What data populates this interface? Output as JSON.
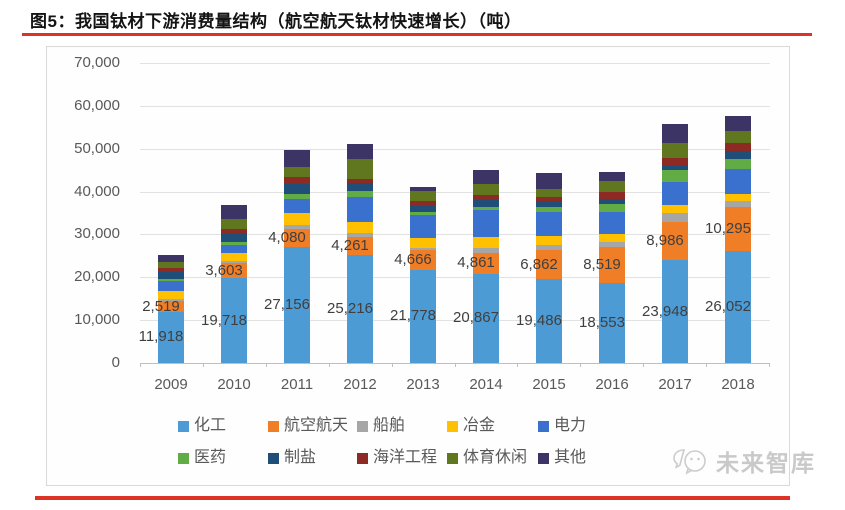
{
  "page": {
    "title": "图5：我国钛材下游消费量结构（航空航天钛材快速增长）（吨）"
  },
  "watermark": {
    "text": "未来智库",
    "icon": "chat-bubbles-icon"
  },
  "colors": {
    "accent_red": "#dd3226",
    "grid": "#e2e2e2",
    "axis": "#bfbfbf",
    "data_label": "#3f3f3f",
    "tick_label": "#595959"
  },
  "chart_data": {
    "type": "bar",
    "stacked": true,
    "title": "我国钛材下游消费量结构（吨）",
    "unit": "吨",
    "categories": [
      "2009",
      "2010",
      "2011",
      "2012",
      "2013",
      "2014",
      "2015",
      "2016",
      "2017",
      "2018"
    ],
    "ylim": [
      0,
      70000
    ],
    "ytick_step": 10000,
    "grid": true,
    "legend_position": "bottom",
    "series": [
      {
        "key": "chemical",
        "name": "化工",
        "color": "#4d9bd5",
        "labeled": true,
        "values": [
          11918,
          19718,
          27156,
          25216,
          21778,
          20867,
          19486,
          18553,
          23948,
          26052
        ]
      },
      {
        "key": "aerospace",
        "name": "航空航天",
        "color": "#f07e26",
        "labeled": true,
        "values": [
          2519,
          3603,
          4080,
          4261,
          4666,
          4861,
          6862,
          8519,
          8986,
          10295
        ]
      },
      {
        "key": "ships",
        "name": "船舶",
        "color": "#a6a6a6",
        "labeled": false,
        "values": [
          400,
          500,
          1000,
          800,
          500,
          1000,
          1100,
          1200,
          2000,
          1500
        ]
      },
      {
        "key": "metallurgy",
        "name": "冶金",
        "color": "#ffc000",
        "labeled": false,
        "values": [
          1900,
          1900,
          2700,
          2700,
          2300,
          2700,
          2300,
          1900,
          2000,
          1600
        ]
      },
      {
        "key": "electric-power",
        "name": "电力",
        "color": "#3a70ce",
        "labeled": false,
        "values": [
          2300,
          1700,
          3300,
          5800,
          5400,
          6200,
          5500,
          5000,
          5400,
          5800
        ]
      },
      {
        "key": "pharmaceutical",
        "name": "医药",
        "color": "#62ac46",
        "labeled": false,
        "values": [
          600,
          800,
          1200,
          1300,
          500,
          800,
          1100,
          1900,
          2700,
          2300
        ]
      },
      {
        "key": "salt-making",
        "name": "制盐",
        "color": "#1f4e79",
        "labeled": false,
        "values": [
          1700,
          2200,
          2300,
          2000,
          1600,
          1700,
          1500,
          1200,
          1000,
          1900
        ]
      },
      {
        "key": "marine-engineering",
        "name": "海洋工程",
        "color": "#8e2a24",
        "labeled": false,
        "values": [
          800,
          900,
          1600,
          900,
          1000,
          1000,
          800,
          1600,
          1700,
          1900
        ]
      },
      {
        "key": "sports-leisure",
        "name": "体育休闲",
        "color": "#60761f",
        "labeled": false,
        "values": [
          1400,
          2200,
          2300,
          4700,
          2300,
          2700,
          1900,
          2700,
          3700,
          2700
        ]
      },
      {
        "key": "other",
        "name": "其他",
        "color": "#3d3466",
        "labeled": false,
        "values": [
          1600,
          3400,
          4000,
          3500,
          1000,
          3300,
          3900,
          1900,
          4300,
          3500
        ]
      }
    ]
  }
}
